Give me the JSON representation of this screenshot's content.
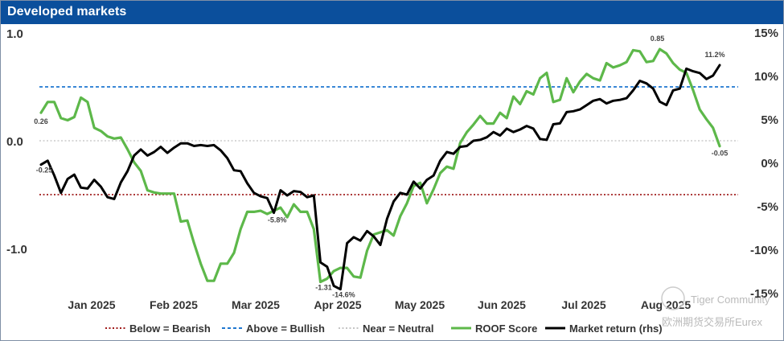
{
  "title": "Developed markets",
  "chart_data": {
    "type": "line",
    "title": "Developed markets",
    "months": [
      "Jan 2025",
      "Feb 2025",
      "Mar 2025",
      "Apr 2025",
      "May 2025",
      "Jun 2025",
      "Jul 2025",
      "Aug 2025"
    ],
    "y_left": {
      "ticks": [
        1.0,
        0.0,
        -1.0
      ],
      "tick_labels": [
        "1.0",
        "0.0",
        "-1.0"
      ],
      "range": [
        -1.4,
        1.0
      ]
    },
    "y_right": {
      "ticks": [
        15,
        10,
        5,
        0,
        -5,
        -10,
        -15
      ],
      "tick_labels": [
        "15%",
        "10%",
        "5%",
        "0%",
        "-5%",
        "-10%",
        "-15%"
      ],
      "range": [
        -15,
        15
      ]
    },
    "reference_lines": [
      {
        "name": "Below = Bearish",
        "value": -0.5,
        "color": "#a01c1c",
        "style": "dotted"
      },
      {
        "name": "Above = Bullish",
        "value": 0.5,
        "color": "#1f77d0",
        "style": "dashed"
      },
      {
        "name": "Near = Neutral",
        "value": 0.0,
        "color": "#b0b0b0",
        "style": "dotted"
      }
    ],
    "series": [
      {
        "name": "ROOF Score",
        "axis": "left",
        "color": "#5db84a",
        "values": [
          0.26,
          0.36,
          0.36,
          0.21,
          0.19,
          0.22,
          0.4,
          0.36,
          0.12,
          0.09,
          0.04,
          0.02,
          0.03,
          -0.08,
          -0.2,
          -0.28,
          -0.46,
          -0.48,
          -0.49,
          -0.49,
          -0.49,
          -0.75,
          -0.74,
          -0.95,
          -1.14,
          -1.3,
          -1.3,
          -1.14,
          -1.14,
          -1.04,
          -0.82,
          -0.66,
          -0.66,
          -0.65,
          -0.68,
          -0.65,
          -0.62,
          -0.71,
          -0.59,
          -0.66,
          -0.66,
          -0.82,
          -1.31,
          -1.28,
          -1.21,
          -1.18,
          -1.18,
          -1.26,
          -1.27,
          -1.02,
          -0.87,
          -0.85,
          -0.83,
          -0.88,
          -0.7,
          -0.58,
          -0.42,
          -0.39,
          -0.58,
          -0.45,
          -0.3,
          -0.24,
          -0.26,
          -0.02,
          0.08,
          0.15,
          0.23,
          0.16,
          0.16,
          0.26,
          0.21,
          0.41,
          0.34,
          0.46,
          0.43,
          0.58,
          0.63,
          0.36,
          0.38,
          0.58,
          0.45,
          0.55,
          0.62,
          0.58,
          0.56,
          0.72,
          0.68,
          0.7,
          0.73,
          0.84,
          0.83,
          0.73,
          0.74,
          0.85,
          0.81,
          0.72,
          0.66,
          0.63,
          0.47,
          0.29,
          0.2,
          0.12,
          -0.05
        ]
      },
      {
        "name": "Market return (rhs)",
        "axis": "right",
        "color": "#000000",
        "values": [
          -0.25,
          0.2,
          -1.5,
          -3.5,
          -1.9,
          -1.4,
          -2.9,
          -3.0,
          -2.0,
          -2.8,
          -4.0,
          -4.2,
          -2.3,
          -1.0,
          0.8,
          1.5,
          0.8,
          1.2,
          1.8,
          1.1,
          1.7,
          2.2,
          2.2,
          1.9,
          2.0,
          1.9,
          2.0,
          1.4,
          0.5,
          -0.9,
          -1.0,
          -2.4,
          -3.5,
          -3.9,
          -4.1,
          -5.8,
          -3.2,
          -3.8,
          -3.3,
          -3.4,
          -4.0,
          -3.8,
          -11.5,
          -12.0,
          -14.2,
          -14.6,
          -9.3,
          -8.6,
          -9.0,
          -7.9,
          -8.5,
          -9.5,
          -6.5,
          -4.5,
          -3.5,
          -3.7,
          -2.2,
          -3.0,
          -2.0,
          -1.5,
          0.2,
          1.2,
          1.0,
          1.8,
          1.9,
          2.5,
          2.6,
          2.9,
          3.5,
          3.1,
          3.9,
          3.5,
          3.8,
          4.2,
          3.9,
          2.7,
          2.6,
          4.4,
          4.5,
          5.8,
          5.9,
          6.1,
          6.6,
          7.1,
          7.3,
          6.8,
          7.1,
          7.2,
          7.4,
          8.3,
          9.4,
          9.1,
          8.5,
          7.0,
          6.6,
          8.3,
          8.5,
          10.8,
          10.5,
          10.3,
          9.6,
          10.0,
          11.2
        ]
      }
    ],
    "annotations": [
      {
        "label": "0.26",
        "series": "ROOF Score",
        "value": 0.26
      },
      {
        "label": "-0.25",
        "series": "Market return (rhs)",
        "value": -0.25
      },
      {
        "label": "-5.8%",
        "series": "Market return (rhs)",
        "value": -5.8
      },
      {
        "label": "-1.31",
        "series": "ROOF Score",
        "value": -1.31
      },
      {
        "label": "-14.6%",
        "series": "Market return (rhs)",
        "value": -14.6
      },
      {
        "label": "0.85",
        "series": "ROOF Score",
        "value": 0.85
      },
      {
        "label": "11.2%",
        "series": "Market return (rhs)",
        "value": 11.2
      },
      {
        "label": "-0.05",
        "series": "ROOF Score",
        "value": -0.05
      }
    ],
    "legend": [
      "Below = Bearish",
      "Above = Bullish",
      "Near = Neutral",
      "ROOF Score",
      "Market return (rhs)"
    ],
    "legend_position": "bottom"
  },
  "watermark": {
    "line1": "Tiger Community",
    "line2": "欧洲期货交易所Eurex"
  }
}
